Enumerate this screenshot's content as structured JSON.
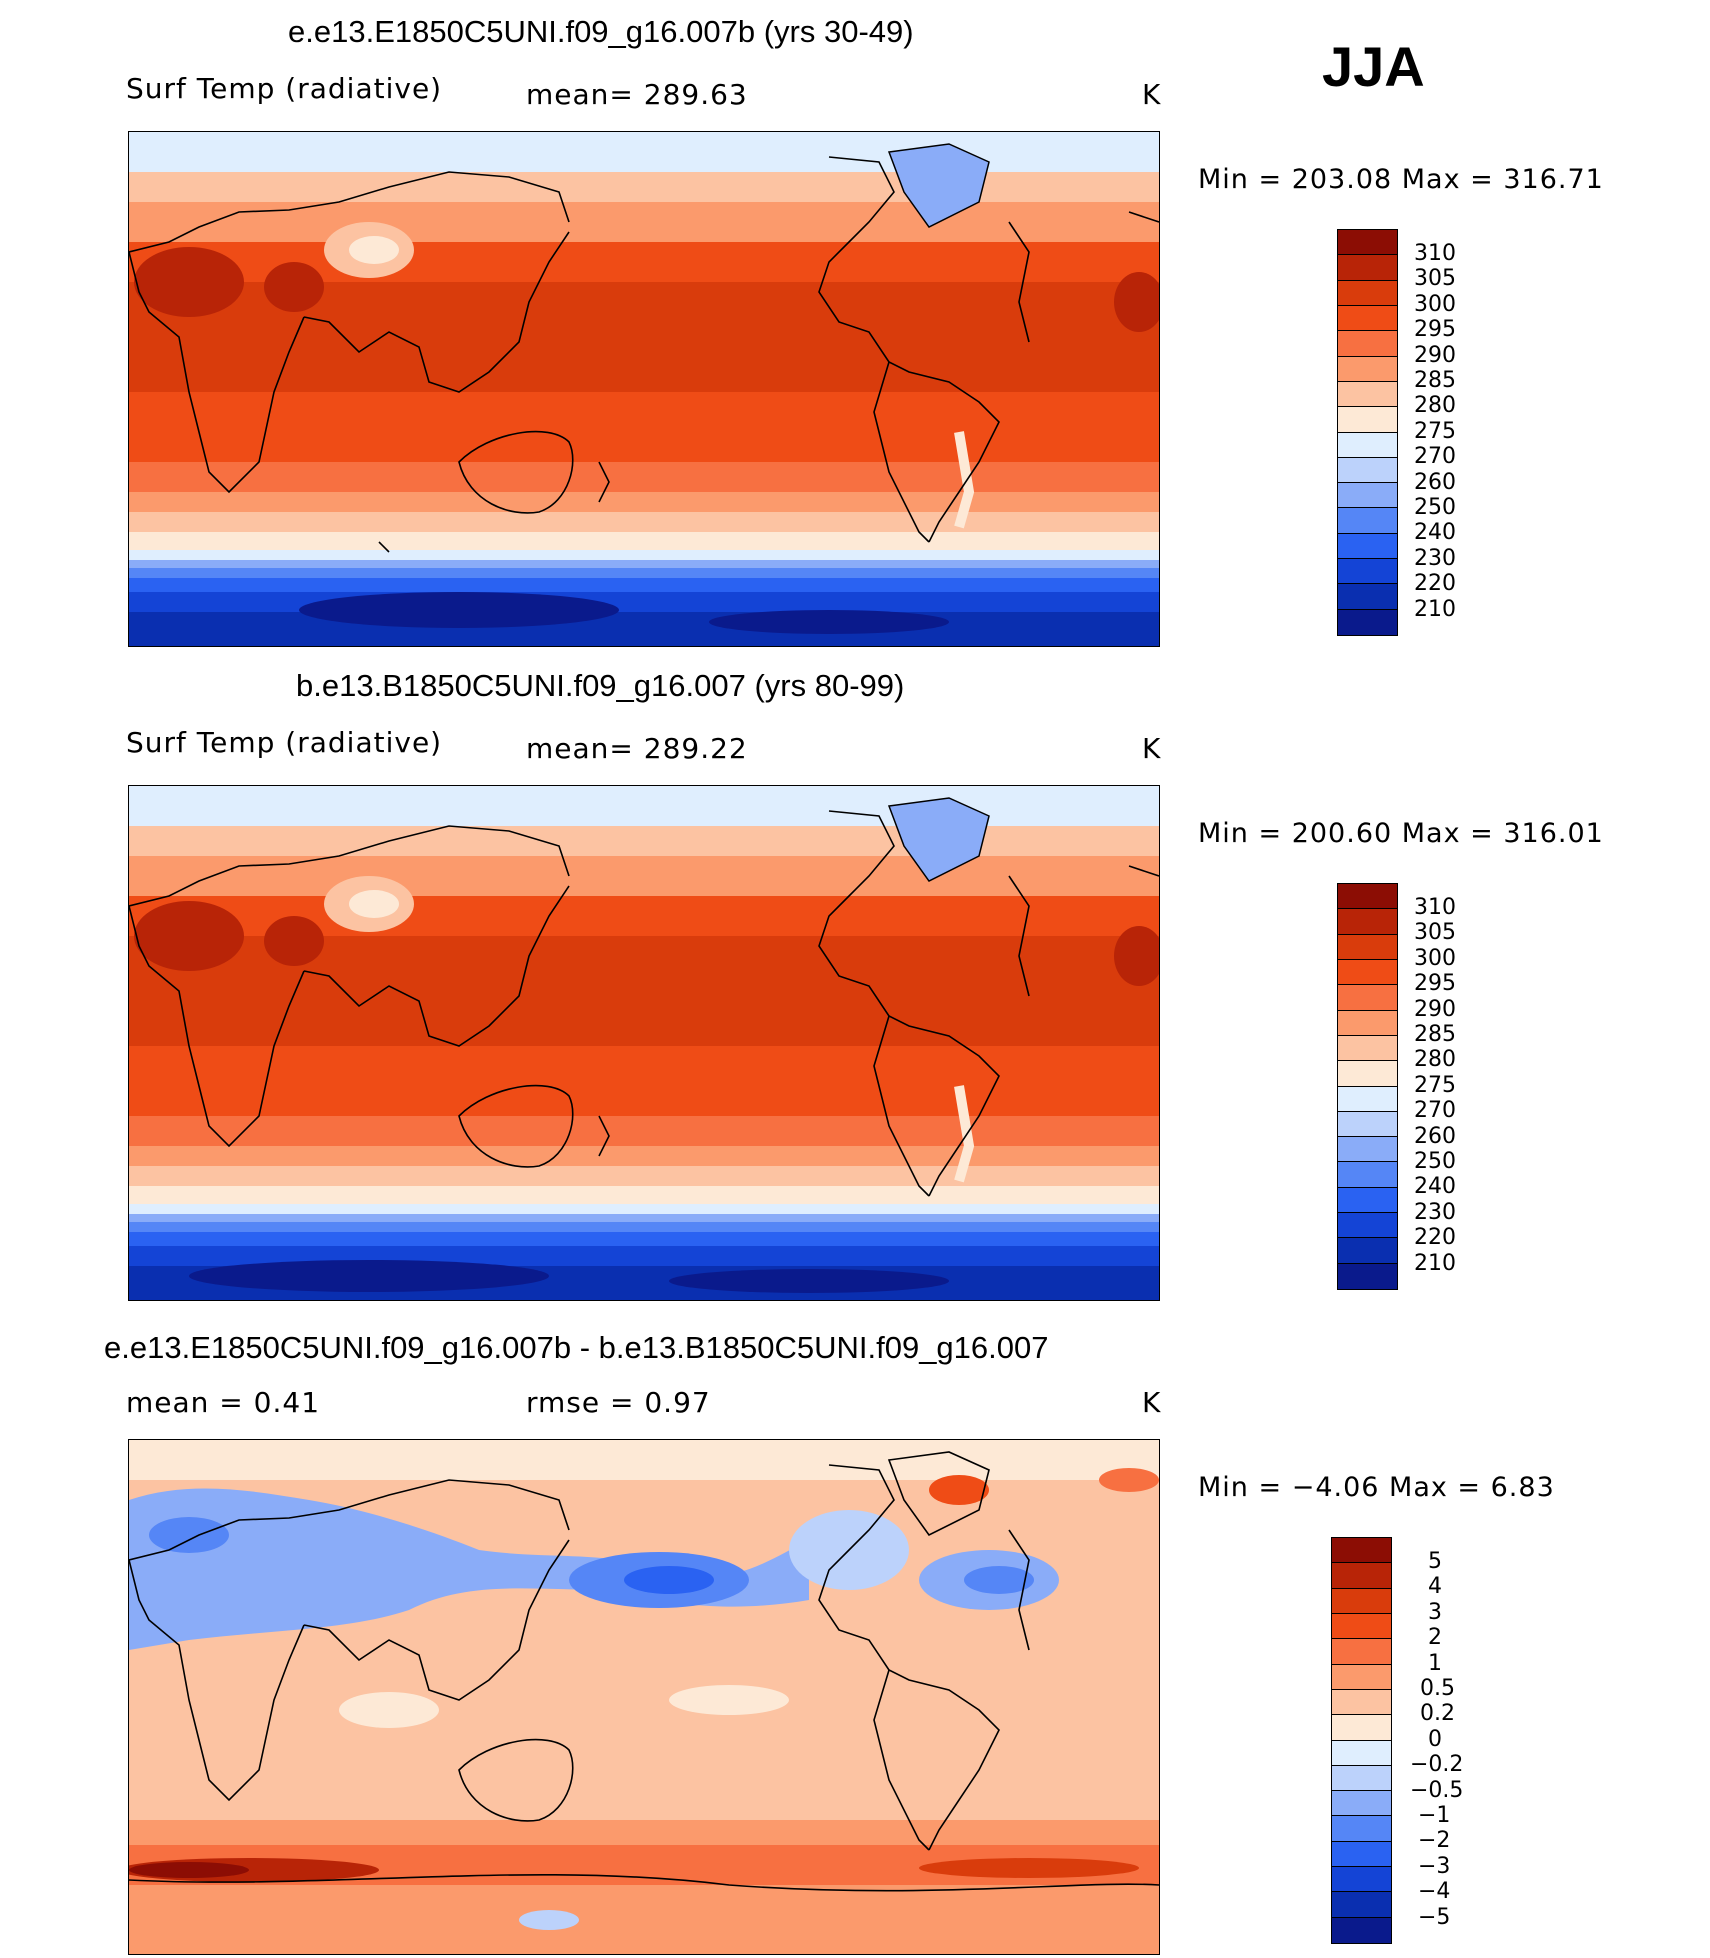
{
  "season": "JJA",
  "colormaps": {
    "temperature": [
      "#0a1a8c",
      "#0a2fb0",
      "#1444d6",
      "#2a62f2",
      "#5586f6",
      "#8aacf8",
      "#bcd2fb",
      "#dfeefe",
      "#fde9d6",
      "#fcc3a2",
      "#fb9a6c",
      "#f77041",
      "#ef4c16",
      "#d93c0c",
      "#b82407",
      "#8c0d04"
    ],
    "difference": [
      "#0a1a8c",
      "#0a2fb0",
      "#1444d6",
      "#2a62f2",
      "#5586f6",
      "#8aacf8",
      "#bcd2fb",
      "#dfeefe",
      "#fde9d6",
      "#fcc3a2",
      "#fb9a6c",
      "#f77041",
      "#ef4c16",
      "#d93c0c",
      "#b82407",
      "#8c0d04"
    ]
  },
  "panels": [
    {
      "title": "e.e13.E1850C5UNI.f09_g16.007b (yrs 30-49)",
      "left_label": "Surf Temp (radiative)",
      "mid_label": "mean=  289.63",
      "right_label": "K",
      "minmax": "Min  =  203.08  Max  =  316.71",
      "colorbar_levels": [
        "310",
        "305",
        "300",
        "295",
        "290",
        "285",
        "280",
        "275",
        "270",
        "260",
        "250",
        "240",
        "230",
        "220",
        "210"
      ],
      "colormap": "temperature"
    },
    {
      "title": "b.e13.B1850C5UNI.f09_g16.007 (yrs 80-99)",
      "left_label": "Surf Temp (radiative)",
      "mid_label": "mean=  289.22",
      "right_label": "K",
      "minmax": "Min  =  200.60  Max  =  316.01",
      "colorbar_levels": [
        "310",
        "305",
        "300",
        "295",
        "290",
        "285",
        "280",
        "275",
        "270",
        "260",
        "250",
        "240",
        "230",
        "220",
        "210"
      ],
      "colormap": "temperature"
    },
    {
      "title": "e.e13.E1850C5UNI.f09_g16.007b - b.e13.B1850C5UNI.f09_g16.007",
      "left_label": "mean =      0.41",
      "mid_label": "rmse =      0.97",
      "right_label": "K",
      "minmax": "Min  =     −4.06  Max  =      6.83",
      "colorbar_levels": [
        "5",
        "4",
        "3",
        "2",
        "1",
        "0.5",
        "0.2",
        "0",
        "−0.2",
        "−0.5",
        "−1",
        "−2",
        "−3",
        "−4",
        "−5"
      ],
      "colormap": "difference"
    }
  ]
}
